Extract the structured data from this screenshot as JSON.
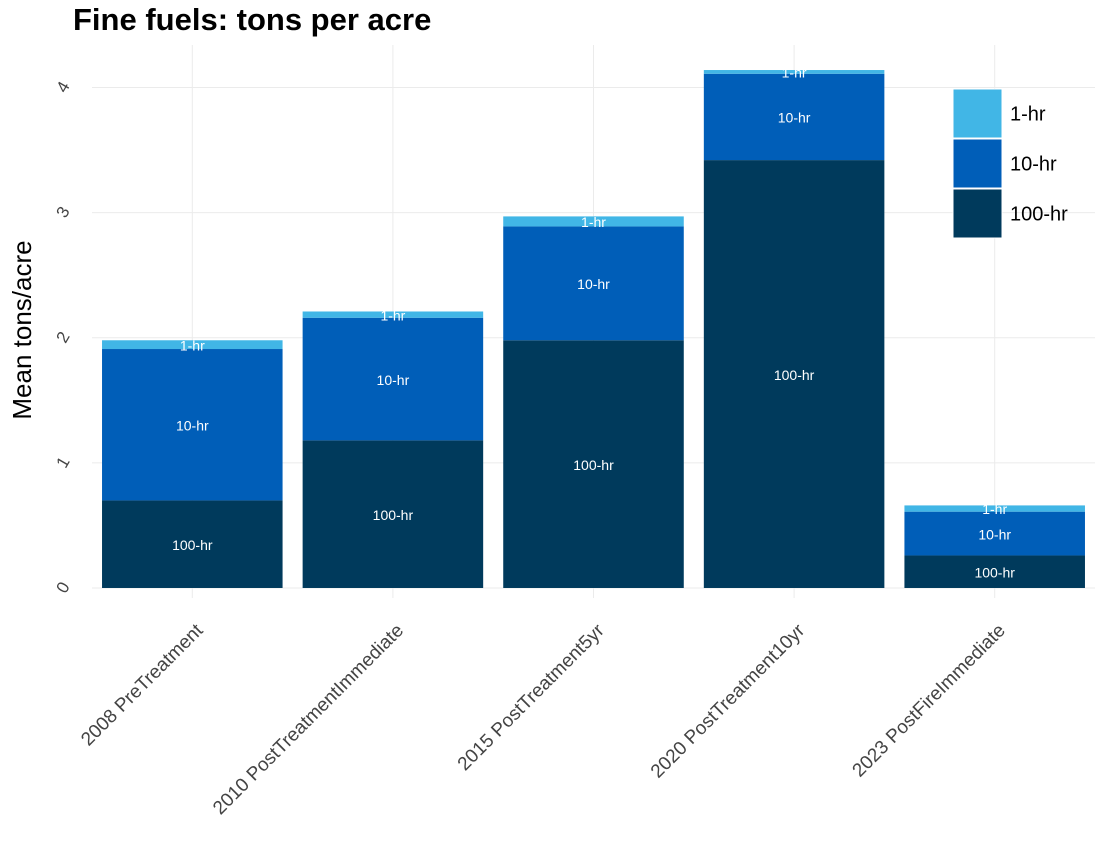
{
  "chart_data": {
    "type": "stacked-bar",
    "title": "Fine fuels: tons per acre",
    "y_label": "Mean tons/acre",
    "categories": [
      "2008 PreTreatment",
      "2010 PostTreatmentImmediate",
      "2015 PostTreatment5yr",
      "2020 PostTreatment10yr",
      "2023 PostFireImmediate"
    ],
    "series": [
      {
        "name": "100-hr",
        "color": "#003a5c",
        "values": [
          0.7,
          1.18,
          1.98,
          3.42,
          0.26
        ]
      },
      {
        "name": "10-hr",
        "color": "#005eb8",
        "values": [
          1.21,
          0.98,
          0.91,
          0.69,
          0.35
        ]
      },
      {
        "name": "1-hr",
        "color": "#41b6e6",
        "values": [
          0.07,
          0.05,
          0.08,
          0.03,
          0.05
        ]
      }
    ],
    "ylim": [
      -0.08,
      4.34
    ],
    "yticks": [
      0,
      1,
      2,
      3,
      4
    ],
    "grid": true,
    "legend": "top-right"
  }
}
